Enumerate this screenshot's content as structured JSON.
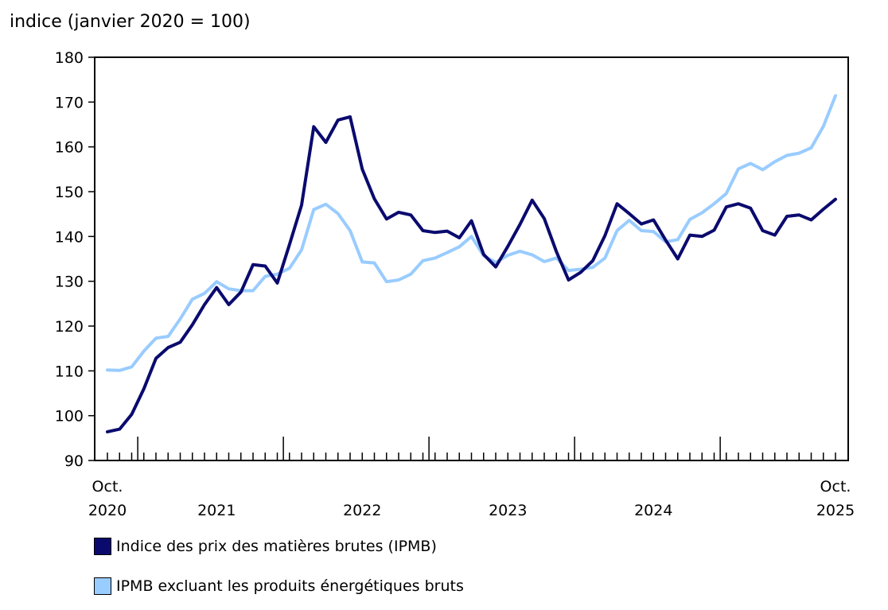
{
  "chart_data": {
    "type": "line",
    "ylabel": "indice (janvier 2020 = 100)",
    "ylim": [
      90,
      180
    ],
    "yticks": [
      90,
      100,
      110,
      120,
      130,
      140,
      150,
      160,
      170,
      180
    ],
    "x_start": "2020-10",
    "x_end": "2025-10",
    "x_labels": [
      {
        "index": 0,
        "line1": "Oct.",
        "line2": "2020"
      },
      {
        "index": 9,
        "line1": "",
        "line2": "2021"
      },
      {
        "index": 21,
        "line1": "",
        "line2": "2022"
      },
      {
        "index": 33,
        "line1": "",
        "line2": "2023"
      },
      {
        "index": 45,
        "line1": "",
        "line2": "2024"
      },
      {
        "index": 60,
        "line1": "Oct.",
        "line2": "2025"
      }
    ],
    "year_boundaries": [
      3,
      15,
      27,
      39,
      51
    ],
    "grid": false,
    "series": [
      {
        "name": "Indice des prix des matières brutes (IPMB)",
        "color": "#0a0a6e",
        "values": [
          96.4,
          97,
          100.3,
          106,
          112.8,
          115.2,
          116.4,
          120.3,
          124.8,
          128.6,
          124.8,
          127.6,
          133.7,
          133.4,
          129.6,
          138.2,
          147,
          164.5,
          161,
          166,
          166.7,
          155,
          148.4,
          143.9,
          145.4,
          144.8,
          141.3,
          140.9,
          141.2,
          139.7,
          143.5,
          136,
          133.2,
          137.8,
          142.7,
          148.1,
          144,
          136.6,
          130.3,
          132,
          134.6,
          140.2,
          147.3,
          145.1,
          142.8,
          143.7,
          139.2,
          135,
          140.3,
          140,
          141.4,
          146.6,
          147.3,
          146.3,
          141.3,
          140.3,
          144.5,
          144.8,
          143.7,
          146.1,
          148.3
        ]
      },
      {
        "name": "IPMB excluant les produits énergétiques bruts",
        "color": "#99ccff",
        "values": [
          110.2,
          110.1,
          110.9,
          114.4,
          117.3,
          117.7,
          121.6,
          126,
          127.3,
          129.9,
          128.3,
          127.9,
          127.9,
          131.1,
          131.6,
          132.9,
          137,
          146,
          147.2,
          145.1,
          141.3,
          134.3,
          134.1,
          129.9,
          130.3,
          131.6,
          134.6,
          135.2,
          136.4,
          137.7,
          140,
          135.7,
          134.2,
          135.8,
          136.7,
          135.9,
          134.4,
          135.2,
          132.4,
          132.7,
          133.1,
          135.2,
          141.3,
          143.6,
          141.3,
          141.1,
          138.8,
          139.3,
          143.8,
          145.3,
          147.3,
          149.6,
          155.1,
          156.3,
          154.9,
          156.7,
          158.1,
          158.6,
          159.8,
          164.6,
          171.4
        ]
      }
    ]
  }
}
